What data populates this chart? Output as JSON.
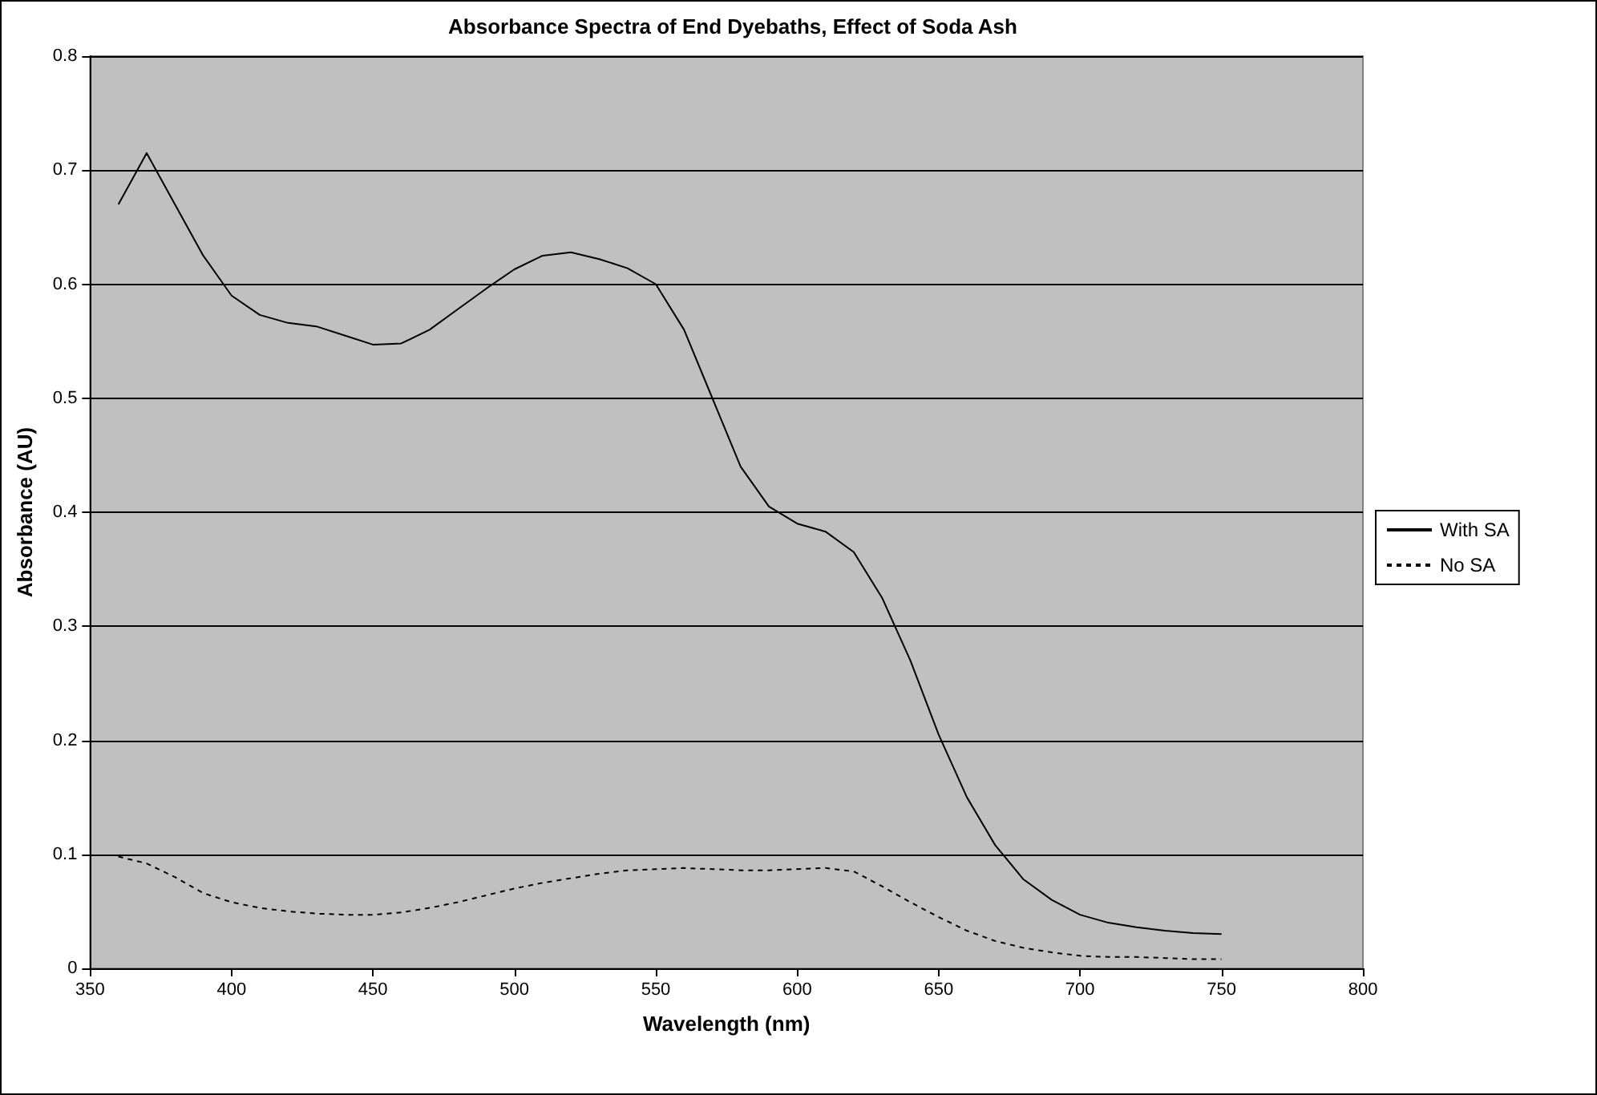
{
  "chart_data": {
    "type": "line",
    "title": "Absorbance Spectra of End Dyebaths, Effect of Soda Ash",
    "xlabel": "Wavelength (nm)",
    "ylabel": "Absorbance (AU)",
    "x": [
      360,
      370,
      380,
      390,
      400,
      410,
      420,
      430,
      440,
      450,
      460,
      470,
      480,
      490,
      500,
      510,
      520,
      530,
      540,
      550,
      560,
      570,
      580,
      590,
      600,
      610,
      620,
      630,
      640,
      650,
      660,
      670,
      680,
      690,
      700,
      710,
      720,
      730,
      740,
      750
    ],
    "series": [
      {
        "name": "With SA",
        "color": "#000000",
        "line_style": "solid",
        "values": [
          0.67,
          0.715,
          0.67,
          0.625,
          0.59,
          0.573,
          0.566,
          0.563,
          0.555,
          0.547,
          0.548,
          0.56,
          0.578,
          0.596,
          0.613,
          0.625,
          0.628,
          0.622,
          0.614,
          0.6,
          0.56,
          0.5,
          0.44,
          0.405,
          0.39,
          0.383,
          0.365,
          0.325,
          0.27,
          0.205,
          0.15,
          0.108,
          0.078,
          0.06,
          0.047,
          0.04,
          0.036,
          0.033,
          0.031,
          0.03
        ]
      },
      {
        "name": "No SA",
        "color": "#000000",
        "line_style": "dashed",
        "values": [
          0.098,
          0.092,
          0.08,
          0.066,
          0.058,
          0.053,
          0.05,
          0.048,
          0.047,
          0.047,
          0.049,
          0.053,
          0.058,
          0.064,
          0.07,
          0.075,
          0.079,
          0.083,
          0.086,
          0.087,
          0.088,
          0.087,
          0.086,
          0.086,
          0.087,
          0.088,
          0.085,
          0.072,
          0.058,
          0.045,
          0.033,
          0.024,
          0.018,
          0.014,
          0.011,
          0.01,
          0.01,
          0.009,
          0.008,
          0.008
        ]
      }
    ],
    "xlim": [
      350,
      800
    ],
    "xticks": [
      350,
      400,
      450,
      500,
      550,
      600,
      650,
      700,
      750,
      800
    ],
    "ylim": [
      0,
      0.8
    ],
    "yticks": [
      0,
      0.1,
      0.2,
      0.3,
      0.4,
      0.5,
      0.6,
      0.7,
      0.8
    ],
    "grid": "y",
    "legend": "right",
    "marker": "none"
  }
}
